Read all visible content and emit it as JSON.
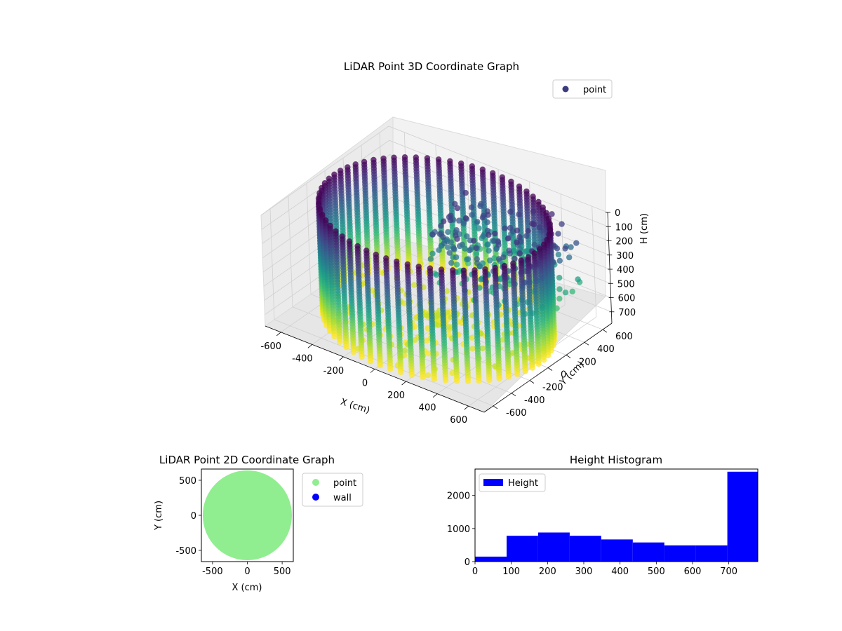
{
  "chart_data": [
    {
      "type": "scatter3d",
      "title": "LiDAR Point 3D Coordinate Graph",
      "xlabel": "X (cm)",
      "ylabel": "Y (cm)",
      "zlabel": "H (cm)",
      "xlim": [
        -700,
        700
      ],
      "ylim": [
        -700,
        700
      ],
      "zlim": [
        0,
        780
      ],
      "z_inverted": true,
      "x_ticks": [
        "-600",
        "-400",
        "-200",
        "0",
        "200",
        "400",
        "600"
      ],
      "y_ticks": [
        "-600",
        "-400",
        "-200",
        "0",
        "200",
        "400",
        "600"
      ],
      "z_ticks": [
        "0",
        "100",
        "200",
        "300",
        "400",
        "500",
        "600",
        "700"
      ],
      "colormap": "viridis",
      "legend": {
        "label": "point",
        "color": "#3b3b80",
        "placement": "upper-right"
      },
      "ring_radius": 640,
      "ring_height": [
        0,
        780
      ],
      "grid": true
    },
    {
      "type": "scatter",
      "title": "LiDAR Point 2D Coordinate Graph",
      "xlabel": "X (cm)",
      "ylabel": "Y (cm)",
      "xlim": [
        -660,
        660
      ],
      "ylim": [
        -660,
        660
      ],
      "x_ticks": [
        "-500",
        "0",
        "500"
      ],
      "y_ticks": [
        "-500",
        "0",
        "500"
      ],
      "series": [
        {
          "name": "point",
          "color": "#90ee90",
          "disk_radius": 640
        },
        {
          "name": "wall",
          "color": "#0000ff"
        }
      ],
      "legend_placement": "outside-right"
    },
    {
      "type": "bar",
      "title": "Height Histogram",
      "xlim": [
        0,
        780
      ],
      "ylim": [
        0,
        2800
      ],
      "x_ticks": [
        "0",
        "100",
        "200",
        "300",
        "400",
        "500",
        "600",
        "700"
      ],
      "y_ticks": [
        "0",
        "1000",
        "2000"
      ],
      "series": [
        {
          "name": "Height",
          "color": "#0000ff",
          "bins": [
            0,
            87,
            174,
            261,
            348,
            435,
            522,
            609,
            696,
            780
          ],
          "values": [
            150,
            780,
            880,
            780,
            670,
            580,
            490,
            490,
            2720
          ]
        }
      ],
      "legend_placement": "upper-left"
    }
  ]
}
